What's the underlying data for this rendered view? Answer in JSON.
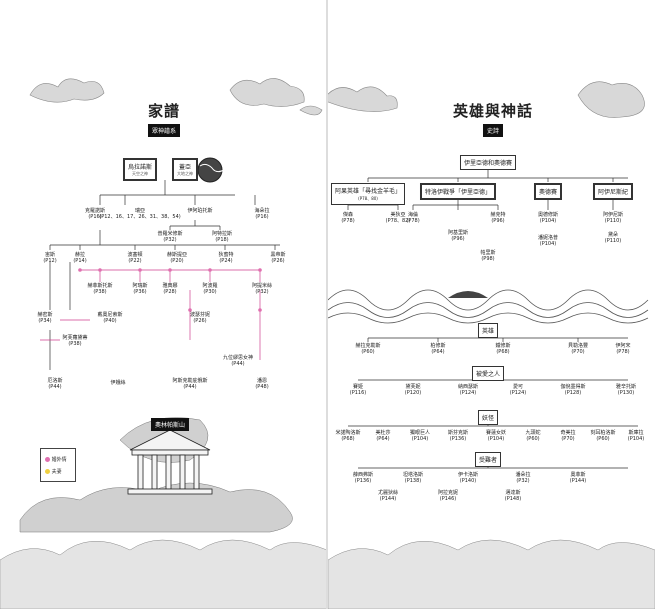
{
  "left": {
    "title": "家譜",
    "subtitle": "眾神譜系",
    "roots": [
      {
        "name": "烏拉諾斯",
        "desc": "天空之神"
      },
      {
        "name": "蓋亞",
        "desc": "大地之神"
      }
    ],
    "gen2": [
      {
        "name": "克羅諾斯",
        "page": "(P16)"
      },
      {
        "name": "瑞亞",
        "page": "(P12、16、17、26、31、38、54)"
      },
      {
        "name": "伊阿珀托斯",
        "page": ""
      },
      {
        "name": "海朵拉",
        "page": "(P16)"
      },
      {
        "name": "普羅米修斯",
        "page": "(P32)"
      },
      {
        "name": "阿特拉斯",
        "page": "(P18)"
      }
    ],
    "gen3": [
      {
        "name": "宙斯",
        "page": "(P12)"
      },
      {
        "name": "赫拉",
        "page": "(P14)"
      },
      {
        "name": "波塞頓",
        "page": "(P22)"
      },
      {
        "name": "赫斯提亞",
        "page": "(P20)"
      },
      {
        "name": "狄蜜特",
        "page": "(P24)"
      },
      {
        "name": "黑帝斯",
        "page": "(P26)"
      }
    ],
    "gen4": [
      {
        "name": "赫菲斯托斯",
        "page": "(P38)"
      },
      {
        "name": "阿瑞斯",
        "page": "(P36)"
      },
      {
        "name": "雅典娜",
        "page": "(P28)"
      },
      {
        "name": "阿波羅",
        "page": "(P30)"
      },
      {
        "name": "阿提米絲",
        "page": "(P32)"
      },
      {
        "name": "赫密斯",
        "page": "(P34)"
      },
      {
        "name": "戴奧尼索斯",
        "page": "(P40)"
      },
      {
        "name": "波瑟芬妮",
        "page": "(P26)"
      },
      {
        "name": "阿芙蘿黛蒂",
        "page": "(P38)"
      }
    ],
    "gen5": [
      {
        "name": "厄洛斯",
        "page": "(P44)"
      },
      {
        "name": "伊娥絲",
        "page": ""
      },
      {
        "name": "阿斯克勒庇俄斯",
        "page": "(P44)"
      },
      {
        "name": "九位繆思女神",
        "page": "(P44)"
      },
      {
        "name": "潘恩",
        "page": "(P48)"
      }
    ],
    "olympus": "奧林帕斯山",
    "legend": {
      "affair": "婚外情",
      "spouse": "夫妻"
    }
  },
  "right": {
    "title": "英雄與神話",
    "subtitle": "史詩",
    "header_box": "伊里亞德和奧德賽",
    "epics": [
      {
        "name": "阿果英雄「尋找金羊毛」",
        "page": "(P78、80)"
      },
      {
        "name": "特洛伊戰爭「伊里亞德」",
        "page": ""
      },
      {
        "name": "奧德賽",
        "page": ""
      },
      {
        "name": "阿伊尼斯紀",
        "page": ""
      }
    ],
    "epic_members": [
      {
        "name": "傑森",
        "page": "(P78)"
      },
      {
        "name": "美狄亞",
        "page": "(P78、82)"
      },
      {
        "name": "海倫",
        "page": "(P78)"
      },
      {
        "name": "阿基里斯",
        "page": "(P96)"
      },
      {
        "name": "赫克特",
        "page": "(P96)"
      },
      {
        "name": "帕里斯",
        "page": "(P98)"
      },
      {
        "name": "奧德修斯",
        "page": "(P104)"
      },
      {
        "name": "潘妮洛普",
        "page": "(P104)"
      },
      {
        "name": "阿伊尼斯",
        "page": "(P110)"
      },
      {
        "name": "黛朵",
        "page": "(P110)"
      }
    ],
    "heroes_label": "英雄",
    "heroes": [
      {
        "name": "赫拉克勒斯",
        "page": "(P60)"
      },
      {
        "name": "柏修斯",
        "page": "(P64)"
      },
      {
        "name": "鐵修斯",
        "page": "(P68)"
      },
      {
        "name": "貝勒洛豐",
        "page": "(P70)"
      },
      {
        "name": "伊阿宋",
        "page": "(P78)"
      }
    ],
    "lovers_label": "被愛之人",
    "lovers": [
      {
        "name": "賽姬",
        "page": "(P116)"
      },
      {
        "name": "黛芙妮",
        "page": "(P120)"
      },
      {
        "name": "納西瑟斯",
        "page": "(P124)"
      },
      {
        "name": "愛可",
        "page": "(P124)"
      },
      {
        "name": "伽倪墨得斯",
        "page": "(P128)"
      },
      {
        "name": "雅辛托斯",
        "page": "(P130)"
      }
    ],
    "monsters_label": "妖怪",
    "monsters": [
      {
        "name": "米諾陶洛斯",
        "page": "(P68)"
      },
      {
        "name": "美杜莎",
        "page": "(P64)"
      },
      {
        "name": "獨眼巨人",
        "page": "(P104)"
      },
      {
        "name": "斯芬克斯",
        "page": "(P136)"
      },
      {
        "name": "賽蓮女妖",
        "page": "(P104)"
      },
      {
        "name": "九頭蛇",
        "page": "(P60)"
      },
      {
        "name": "奇美拉",
        "page": "(P70)"
      },
      {
        "name": "刻耳柏洛斯",
        "page": "(P60)"
      },
      {
        "name": "斯庫拉",
        "page": "(P104)"
      }
    ],
    "sufferers_label": "受難者",
    "sufferers": [
      {
        "name": "薛西弗斯",
        "page": "(P136)"
      },
      {
        "name": "坦塔洛斯",
        "page": "(P138)"
      },
      {
        "name": "伊卡洛斯",
        "page": "(P140)"
      },
      {
        "name": "潘朵拉",
        "page": "(P32)"
      },
      {
        "name": "奧菲斯",
        "page": "(P144)"
      },
      {
        "name": "尤麗狄絲",
        "page": "(P144)"
      },
      {
        "name": "阿拉克妮",
        "page": "(P146)"
      },
      {
        "name": "邁達斯",
        "page": "(P148)"
      }
    ]
  }
}
